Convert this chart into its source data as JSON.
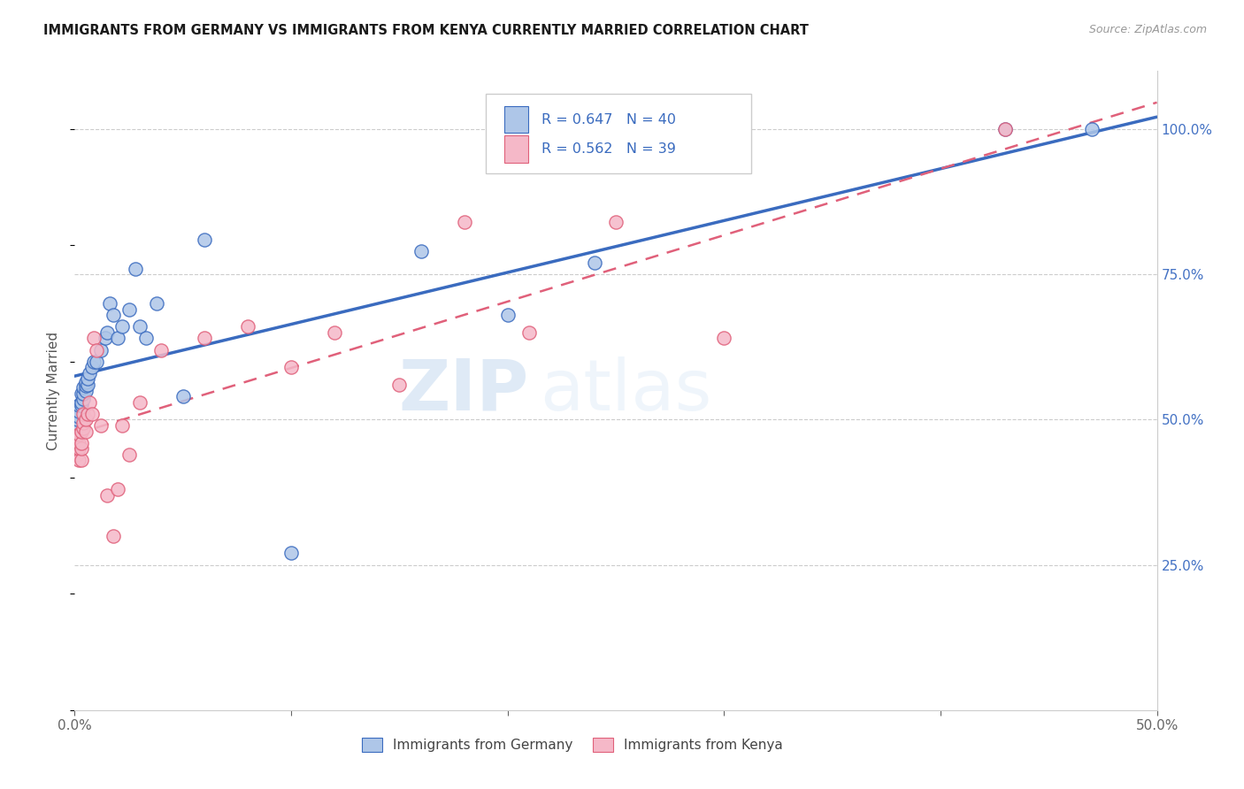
{
  "title": "IMMIGRANTS FROM GERMANY VS IMMIGRANTS FROM KENYA CURRENTLY MARRIED CORRELATION CHART",
  "source": "Source: ZipAtlas.com",
  "ylabel": "Currently Married",
  "xlim": [
    0.0,
    0.5
  ],
  "ylim": [
    0.0,
    1.1
  ],
  "legend1_R": "0.647",
  "legend1_N": "40",
  "legend2_R": "0.562",
  "legend2_N": "39",
  "color_germany": "#aec6e8",
  "color_kenya": "#f5b8c8",
  "line_germany": "#3a6bbf",
  "line_kenya": "#e0607a",
  "line_germany_dashed": "#aec6e8",
  "background": "#ffffff",
  "watermark_zip": "ZIP",
  "watermark_atlas": "atlas",
  "germany_x": [
    0.001,
    0.001,
    0.002,
    0.002,
    0.002,
    0.003,
    0.003,
    0.003,
    0.004,
    0.004,
    0.004,
    0.005,
    0.005,
    0.005,
    0.006,
    0.006,
    0.007,
    0.008,
    0.009,
    0.01,
    0.012,
    0.014,
    0.015,
    0.016,
    0.018,
    0.02,
    0.022,
    0.025,
    0.028,
    0.03,
    0.033,
    0.038,
    0.05,
    0.06,
    0.1,
    0.16,
    0.2,
    0.24,
    0.43,
    0.47
  ],
  "germany_y": [
    0.49,
    0.5,
    0.505,
    0.515,
    0.525,
    0.525,
    0.53,
    0.545,
    0.535,
    0.545,
    0.555,
    0.55,
    0.558,
    0.565,
    0.56,
    0.57,
    0.58,
    0.59,
    0.6,
    0.6,
    0.62,
    0.64,
    0.65,
    0.7,
    0.68,
    0.64,
    0.66,
    0.69,
    0.76,
    0.66,
    0.64,
    0.7,
    0.54,
    0.81,
    0.27,
    0.79,
    0.68,
    0.77,
    1.0,
    1.0
  ],
  "kenya_x": [
    0.001,
    0.001,
    0.001,
    0.002,
    0.002,
    0.002,
    0.002,
    0.003,
    0.003,
    0.003,
    0.003,
    0.004,
    0.004,
    0.004,
    0.005,
    0.005,
    0.006,
    0.007,
    0.008,
    0.009,
    0.01,
    0.012,
    0.015,
    0.018,
    0.02,
    0.022,
    0.025,
    0.03,
    0.04,
    0.06,
    0.08,
    0.1,
    0.12,
    0.15,
    0.18,
    0.21,
    0.25,
    0.3,
    0.43
  ],
  "kenya_y": [
    0.44,
    0.455,
    0.465,
    0.43,
    0.45,
    0.46,
    0.475,
    0.43,
    0.45,
    0.46,
    0.48,
    0.485,
    0.495,
    0.51,
    0.48,
    0.5,
    0.51,
    0.53,
    0.51,
    0.64,
    0.62,
    0.49,
    0.37,
    0.3,
    0.38,
    0.49,
    0.44,
    0.53,
    0.62,
    0.64,
    0.66,
    0.59,
    0.65,
    0.56,
    0.84,
    0.65,
    0.84,
    0.64,
    1.0
  ]
}
